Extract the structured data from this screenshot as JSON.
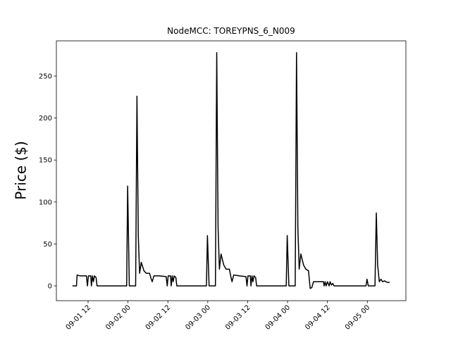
{
  "chart_data": {
    "type": "line",
    "title": "NodeMCC: TOREYPNS_6_N009",
    "y_label": "Price ($)",
    "x": [
      7.3,
      8.5,
      8.7,
      9.5,
      11.5,
      11.8,
      12.1,
      12.8,
      13.0,
      13.3,
      13.6,
      13.9,
      14.4,
      14.7,
      23.6,
      23.9,
      24.4,
      26.3,
      26.7,
      27.1,
      27.5,
      28.0,
      28.8,
      29.5,
      30.5,
      31.0,
      31.3,
      31.8,
      33.5,
      35.5,
      35.8,
      36.1,
      36.8,
      37.0,
      37.3,
      37.6,
      37.9,
      38.4,
      38.7,
      47.6,
      47.9,
      48.4,
      50.3,
      50.7,
      51.1,
      51.5,
      52.0,
      52.8,
      53.5,
      54.5,
      55.0,
      55.3,
      55.8,
      57.5,
      59.5,
      59.8,
      60.1,
      60.8,
      61.0,
      61.3,
      61.6,
      61.9,
      62.4,
      62.7,
      71.6,
      71.9,
      72.4,
      74.3,
      74.7,
      75.1,
      75.5,
      76.0,
      76.8,
      77.5,
      78.3,
      78.8,
      79.3,
      79.8,
      82.8,
      83.0,
      83.3,
      83.6,
      84.0,
      84.5,
      84.8,
      85.2,
      85.6,
      86.0,
      95.6,
      95.9,
      96.3,
      98.3,
      98.7,
      99.1,
      99.6,
      100.1,
      100.6,
      101.2,
      101.8,
      102.7
    ],
    "series": [
      {
        "color": "#000000",
        "values": [
          0,
          0,
          13,
          12,
          12,
          0,
          12,
          12,
          0,
          12,
          5,
          12,
          10,
          0,
          0,
          119,
          0,
          0,
          226,
          60,
          15,
          28,
          18,
          15,
          15,
          8,
          5,
          12,
          12,
          11,
          0,
          12,
          12,
          0,
          12,
          5,
          12,
          10,
          0,
          0,
          60,
          0,
          0,
          278,
          70,
          20,
          38,
          25,
          20,
          20,
          10,
          5,
          13,
          12,
          11,
          0,
          12,
          12,
          0,
          12,
          5,
          12,
          10,
          0,
          0,
          60,
          0,
          0,
          278,
          70,
          20,
          38,
          25,
          20,
          18,
          -3,
          -2,
          5,
          5,
          0,
          5,
          0,
          5,
          0,
          5,
          1,
          3,
          0,
          0,
          8,
          0,
          0,
          87,
          25,
          5,
          8,
          5,
          6,
          4.5,
          4
        ]
      }
    ],
    "xlim": [
      2.46,
      107.6
    ],
    "xticks": [
      {
        "value": 12,
        "label": "09-01 12"
      },
      {
        "value": 24,
        "label": "09-02 00"
      },
      {
        "value": 36,
        "label": "09-02 12"
      },
      {
        "value": 48,
        "label": "09-03 00"
      },
      {
        "value": 60,
        "label": "09-03 12"
      },
      {
        "value": 72,
        "label": "09-04 00"
      },
      {
        "value": 84,
        "label": "09-04 12"
      },
      {
        "value": 96,
        "label": "09-05 00"
      }
    ],
    "ylim": [
      -17.6,
      292
    ],
    "yticks": [
      0,
      50,
      100,
      150,
      200,
      250
    ]
  }
}
